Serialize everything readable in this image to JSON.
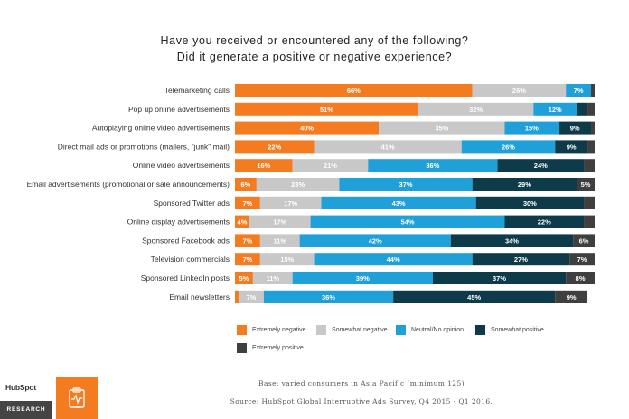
{
  "chart_data": {
    "type": "bar",
    "orientation": "horizontal",
    "stacked": true,
    "title_line1": "Have you received or encountered any of the following?",
    "title_line2": "Did it generate a positive or negative experience?",
    "xlim": [
      0,
      100
    ],
    "categories": [
      "Telemarketing calls",
      "Pop up online advertisements",
      "Autoplaying online video advertisements",
      "Direct mail ads or promotions (mailers, \"junk\" mail)",
      "Online video advertisements",
      "Email advertisements (promotional or sale announcements)",
      "Sponsored Twitter ads",
      "Online display advertisements",
      "Sponsored Facebook ads",
      "Television commercials",
      "Sponsored LinkedIn posts",
      "Email newsletters"
    ],
    "series": [
      {
        "name": "Extremely negative",
        "color": "#f47b20",
        "label_color": "#ffffff",
        "values": [
          66,
          51,
          40,
          22,
          16,
          6,
          7,
          4,
          7,
          7,
          5,
          1
        ],
        "labels": [
          "66%",
          "51%",
          "40%",
          "22%",
          "16%",
          "6%",
          "7%",
          "4%",
          "7%",
          "7%",
          "5%",
          ""
        ]
      },
      {
        "name": "Somewhat negative",
        "color": "#c8c8c8",
        "label_color": "#ffffff",
        "values": [
          26,
          32,
          35,
          41,
          21,
          23,
          17,
          17,
          11,
          15,
          11,
          7
        ],
        "labels": [
          "26%",
          "32%",
          "35%",
          "41%",
          "21%",
          "23%",
          "17%",
          "17%",
          "11%",
          "15%",
          "11%",
          "7%"
        ]
      },
      {
        "name": "Neutral/No opinion",
        "color": "#1fa0d8",
        "label_color": "#ffffff",
        "values": [
          7,
          12,
          15,
          26,
          36,
          37,
          43,
          54,
          42,
          44,
          39,
          36
        ],
        "labels": [
          "7%",
          "12%",
          "15%",
          "26%",
          "36%",
          "37%",
          "43%",
          "54%",
          "42%",
          "44%",
          "39%",
          "36%"
        ]
      },
      {
        "name": "Somewhat positive",
        "color": "#0d3b4a",
        "label_color": "#ffffff",
        "values": [
          0,
          3,
          9,
          9,
          24,
          29,
          30,
          22,
          34,
          27,
          37,
          45
        ],
        "labels": [
          "",
          "",
          "9%",
          "9%",
          "24%",
          "29%",
          "30%",
          "22%",
          "34%",
          "27%",
          "37%",
          "45%"
        ]
      },
      {
        "name": "Extremely positive",
        "color": "#3f3f3f",
        "label_color": "#ffffff",
        "values": [
          1,
          2,
          1,
          2,
          3,
          5,
          3,
          3,
          6,
          7,
          8,
          9
        ],
        "labels": [
          "",
          "",
          "",
          "",
          "",
          "5%",
          "",
          "",
          "6%",
          "7%",
          "8%",
          "9%"
        ]
      }
    ]
  },
  "legend": [
    {
      "label": "Extremely negative",
      "color": "#f47b20"
    },
    {
      "label": "Somewhat negative",
      "color": "#c8c8c8"
    },
    {
      "label": "Neutral/No opinion",
      "color": "#1fa0d8"
    },
    {
      "label": "Somewhat positive",
      "color": "#0d3b4a"
    },
    {
      "label": "Extremely positive",
      "color": "#3f3f3f"
    }
  ],
  "footer": {
    "base": "Base: varied consumers in Asia Pacif c (minimum 125)",
    "source": "Source: HubSpot Global Interruptive Ads Survey, Q4 2015 - Q1 2016."
  },
  "brand": {
    "name": "HubSpot",
    "sub": "RESEARCH",
    "icon": "clipboard-pulse-icon"
  }
}
